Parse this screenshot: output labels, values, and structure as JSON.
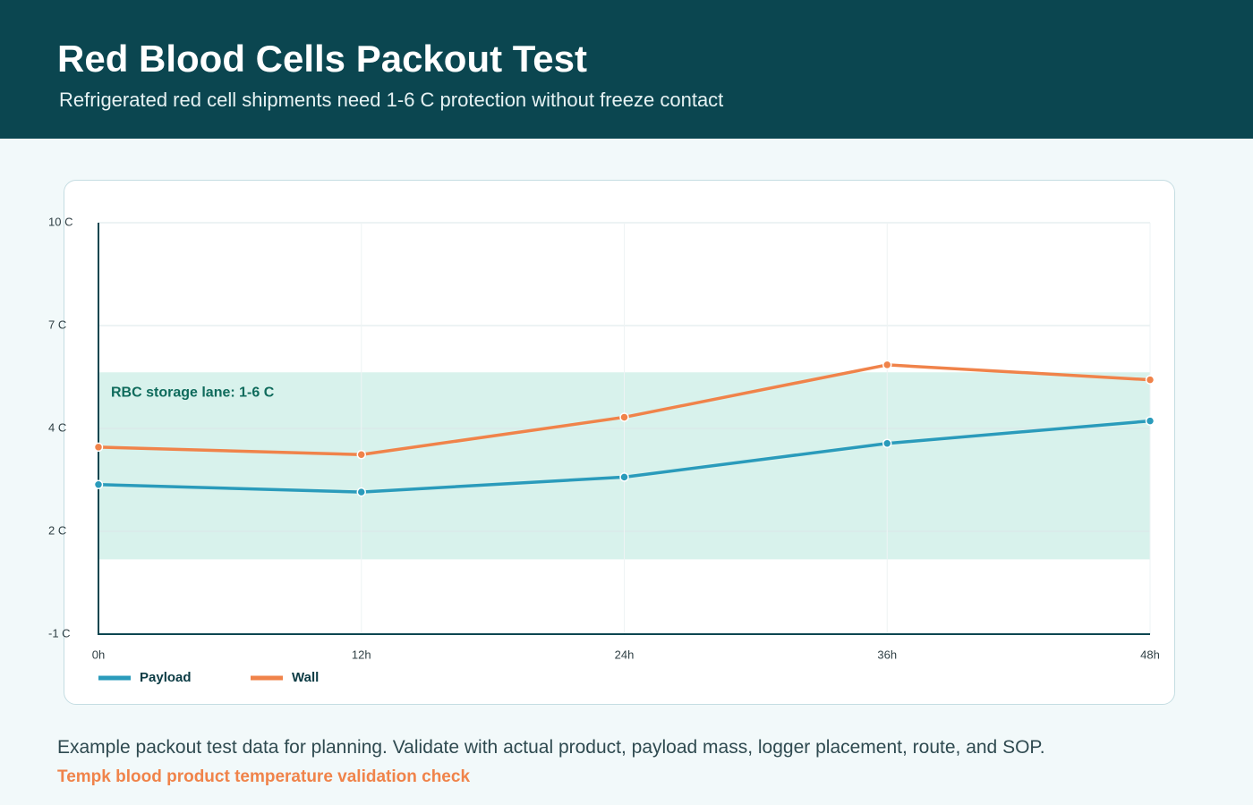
{
  "header": {
    "title": "Red Blood Cells Packout Test",
    "subtitle": "Refrigerated red cell shipments need 1-6 C protection without freeze contact"
  },
  "chart_data": {
    "type": "line",
    "x": [
      0,
      12,
      24,
      36,
      48
    ],
    "xlim": [
      0,
      48
    ],
    "xticks": [
      {
        "value": 0,
        "label": "0h"
      },
      {
        "value": 12,
        "label": "12h"
      },
      {
        "value": 24,
        "label": "24h"
      },
      {
        "value": 36,
        "label": "36h"
      },
      {
        "value": 48,
        "label": "48h"
      }
    ],
    "ylim": [
      -1,
      10
    ],
    "yticks": [
      {
        "value": 10,
        "label": "10 C"
      },
      {
        "value": 7.25,
        "label": "7 C"
      },
      {
        "value": 4.5,
        "label": "4 C"
      },
      {
        "value": 1.75,
        "label": "2 C"
      },
      {
        "value": -1,
        "label": "-1 C"
      }
    ],
    "grid": true,
    "band": {
      "label": "RBC storage lane: 1-6 C",
      "range": [
        1,
        6
      ],
      "color": "#d8f2ec"
    },
    "series": [
      {
        "name": "Payload",
        "color": "#2a9bbb",
        "values": [
          3.0,
          2.8,
          3.2,
          4.1,
          4.7
        ]
      },
      {
        "name": "Wall",
        "color": "#f0834a",
        "values": [
          4.0,
          3.8,
          4.8,
          6.2,
          5.8
        ]
      }
    ],
    "legend": "bottom-left"
  },
  "footer": {
    "note": "Example packout test data for planning. Validate with actual product, payload mass, logger placement, route, and SOP.",
    "link": "Tempk blood product temperature validation check"
  }
}
